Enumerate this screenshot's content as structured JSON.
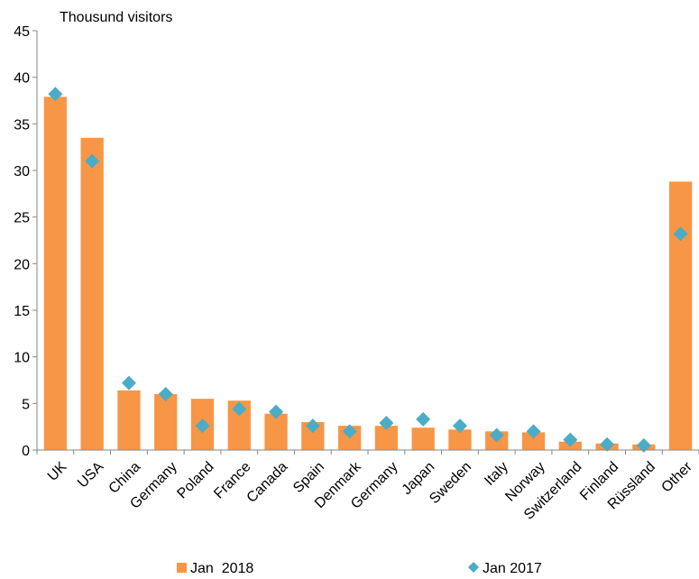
{
  "chart_data": {
    "type": "bar",
    "ylabel": "Thousund visitors",
    "ylim": [
      0,
      45
    ],
    "yticks": [
      0,
      5,
      10,
      15,
      20,
      25,
      30,
      35,
      40,
      45
    ],
    "categories": [
      "UK",
      "USA",
      "China",
      "Germany",
      "Poland",
      "France",
      "Canada",
      "Spain",
      "Denmark",
      "Germany",
      "Japan",
      "Sweden",
      "Italy",
      "Norway",
      "Switzerland",
      "Finland",
      "Rüssland",
      "Other"
    ],
    "series": [
      {
        "name": "Jan  2018",
        "kind": "bar",
        "color": "#F79646",
        "values": [
          37.9,
          33.5,
          6.4,
          6.0,
          5.5,
          5.3,
          3.9,
          3.0,
          2.6,
          2.6,
          2.4,
          2.2,
          2.0,
          1.9,
          0.9,
          0.7,
          0.6,
          28.8
        ]
      },
      {
        "name": "Jan 2017",
        "kind": "marker",
        "marker": "diamond",
        "color": "#4BACC6",
        "values": [
          38.2,
          31.0,
          7.2,
          6.0,
          2.6,
          4.4,
          4.1,
          2.6,
          2.0,
          2.9,
          3.3,
          2.6,
          1.6,
          2.0,
          1.1,
          0.6,
          0.5,
          23.2
        ]
      }
    ],
    "grid": false,
    "legend_position": "bottom"
  }
}
